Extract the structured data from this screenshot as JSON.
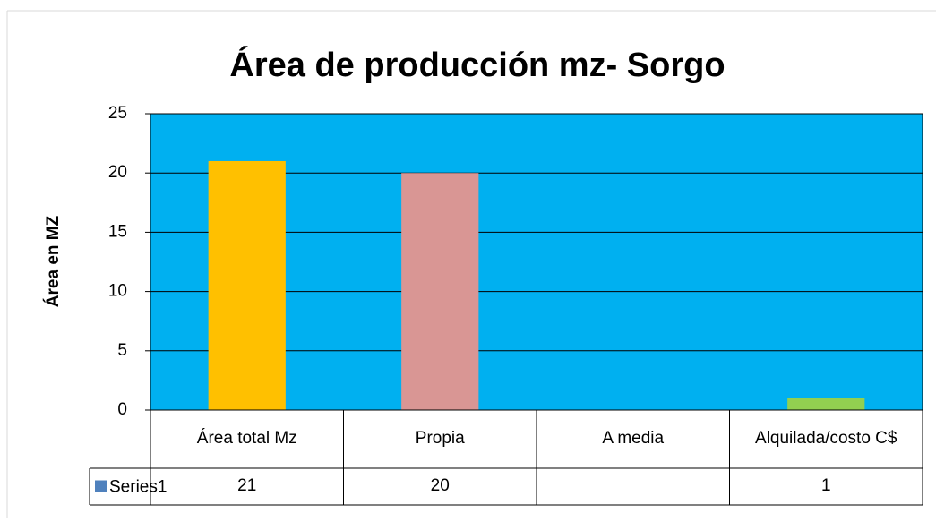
{
  "chart_data": {
    "type": "bar",
    "title": "Área de producción mz- Sorgo",
    "y_label": "Área en MZ",
    "categories": [
      "Área total Mz",
      "Propia",
      "A media",
      "Alquilada/costo C$"
    ],
    "series": [
      {
        "name": "Series1",
        "color": "#4f81bd",
        "values": [
          21,
          20,
          null,
          1
        ]
      }
    ],
    "bar_colors": [
      "#ffc000",
      "#d99694",
      "#00b0f0",
      "#92d050"
    ],
    "plot_background": "#00b0f0",
    "ylim": [
      0,
      25
    ],
    "yticks": [
      0,
      5,
      10,
      15,
      20,
      25
    ],
    "grid": true,
    "data_table": true
  }
}
